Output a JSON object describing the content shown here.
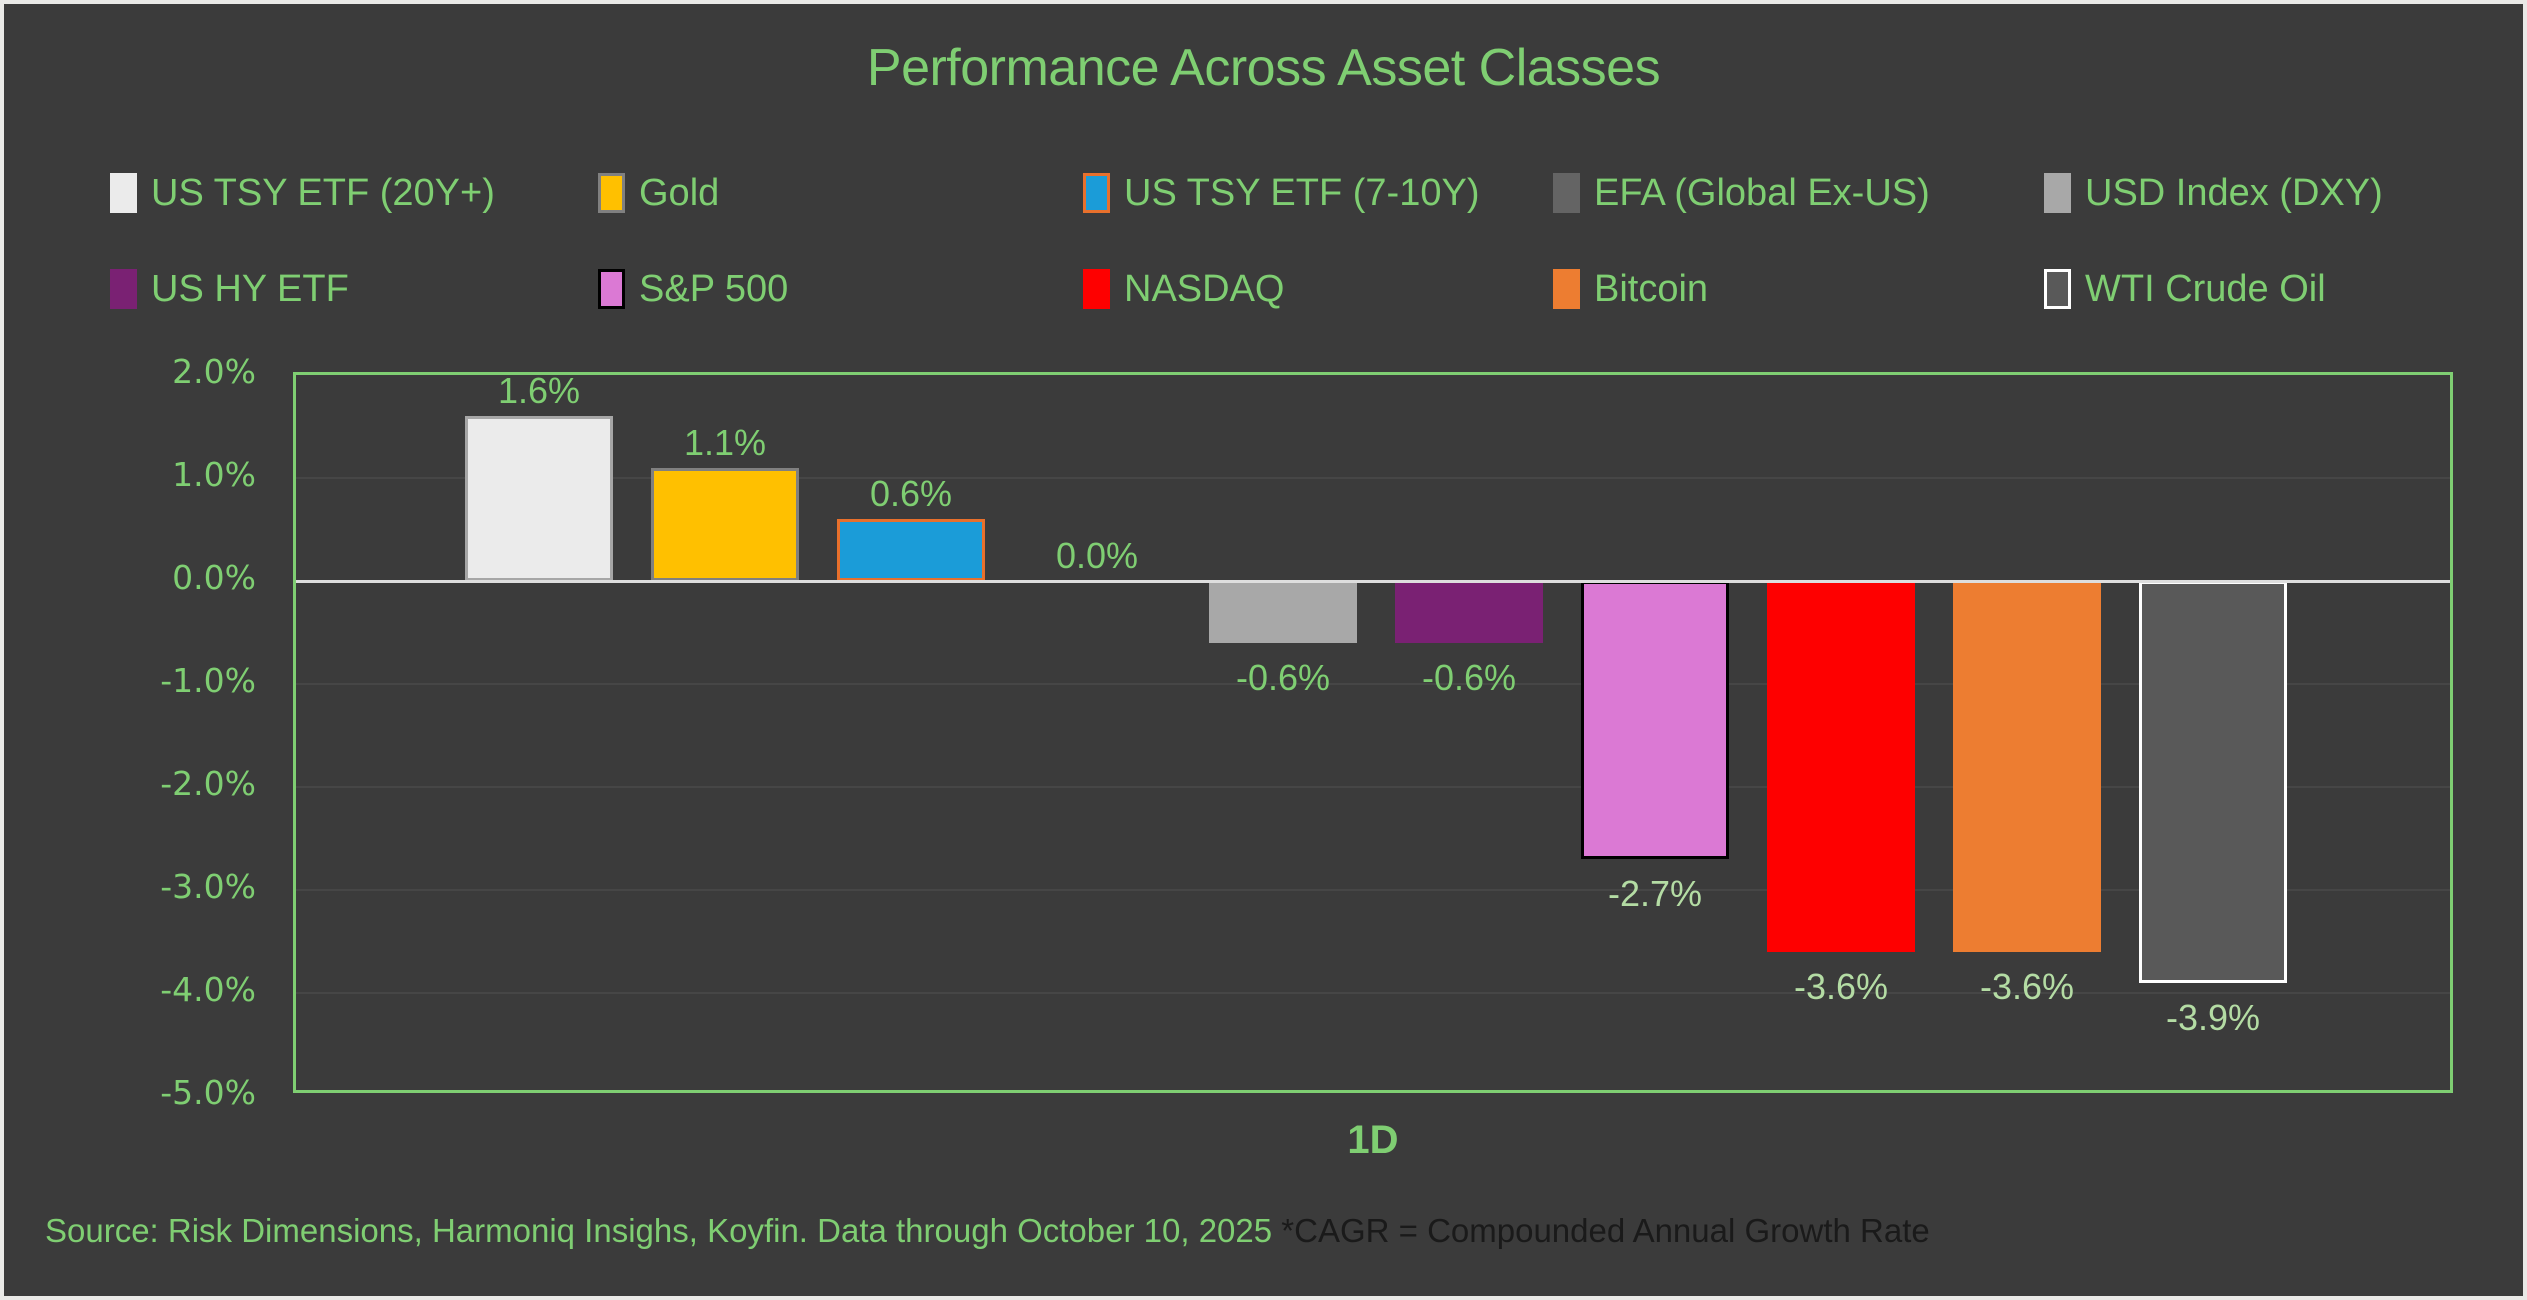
{
  "title": "Performance Across Asset Classes",
  "x_axis_label": "1D",
  "source_note": {
    "green_part": "Source: Risk Dimensions, Harmoniq Insighs, Koyfin. Data through October 10, 2025 ",
    "dark_part": "*CAGR = Compounded Annual Growth Rate"
  },
  "colors": {
    "background": "#3B3B3B",
    "frame": "#E9E9E7",
    "green_text": "#7FCE72",
    "pale_green_label": "#B4DCA4",
    "note_dark_text": "#1A1A1A",
    "gridline": "#464646",
    "zero_line": "#DEDEDE",
    "plot_border": "#7FCE72"
  },
  "chart_data": {
    "type": "bar",
    "title": "Performance Across Asset Classes",
    "categories": [
      "1D"
    ],
    "xlabel": "1D",
    "ylabel": "",
    "ylim": [
      -5.0,
      2.0
    ],
    "y_ticks": [
      "2.0%",
      "1.0%",
      "0.0%",
      "-1.0%",
      "-2.0%",
      "-3.0%",
      "-4.0%",
      "-5.0%"
    ],
    "grid": true,
    "legend_position": "top",
    "series": [
      {
        "name": "US TSY ETF (20Y+)",
        "value": 1.6,
        "label": "1.6%",
        "fill": "#EBEBEB",
        "border": "#A6A6A6",
        "swatch_border": null,
        "label_tone": "green"
      },
      {
        "name": "Gold",
        "value": 1.1,
        "label": "1.1%",
        "fill": "#FFC000",
        "border": "#808080",
        "swatch_border": "#808080",
        "label_tone": "green"
      },
      {
        "name": "US TSY ETF (7-10Y)",
        "value": 0.6,
        "label": "0.6%",
        "fill": "#1B9CD8",
        "border": "#E8702C",
        "swatch_border": "#E8702C",
        "label_tone": "green"
      },
      {
        "name": "EFA (Global Ex-US)",
        "value": 0.0,
        "label": "0.0%",
        "fill": "#646464",
        "border": null,
        "swatch_border": null,
        "label_tone": "green"
      },
      {
        "name": "USD Index (DXY)",
        "value": -0.6,
        "label": "-0.6%",
        "fill": "#A8A8A8",
        "border": null,
        "swatch_border": null,
        "label_tone": "green"
      },
      {
        "name": "US HY ETF",
        "value": -0.6,
        "label": "-0.6%",
        "fill": "#7A2173",
        "border": null,
        "swatch_border": null,
        "label_tone": "green"
      },
      {
        "name": "S&P 500",
        "value": -2.7,
        "label": "-2.7%",
        "fill": "#DB79D4",
        "border": "#000000",
        "swatch_border": "#000000",
        "label_tone": "pale"
      },
      {
        "name": "NASDAQ",
        "value": -3.6,
        "label": "-3.6%",
        "fill": "#FE0000",
        "border": null,
        "swatch_border": null,
        "label_tone": "pale"
      },
      {
        "name": "Bitcoin",
        "value": -3.6,
        "label": "-3.6%",
        "fill": "#ED7D31",
        "border": null,
        "swatch_border": null,
        "label_tone": "pale"
      },
      {
        "name": "WTI Crude Oil",
        "value": -3.9,
        "label": "-3.9%",
        "fill": "#595959",
        "border": "#FFFFFF",
        "swatch_border": "#FFFFFF",
        "label_tone": "pale"
      }
    ]
  }
}
